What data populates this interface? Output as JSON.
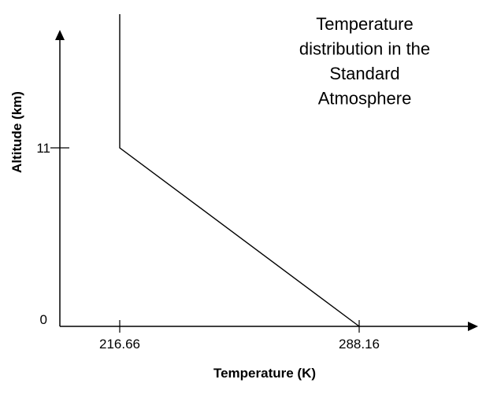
{
  "chart_data": {
    "type": "line",
    "title": [
      "Temperature",
      "distribution in the",
      "Standard",
      "Atmosphere"
    ],
    "xlabel": "Temperature (K)",
    "ylabel": "Altitude (km)",
    "x_ticks": [
      216.66,
      288.16
    ],
    "x_tick_labels": [
      "216.66",
      "288.16"
    ],
    "y_ticks": [
      0,
      11
    ],
    "y_tick_labels": [
      "0",
      "11"
    ],
    "series": [
      {
        "points": [
          {
            "x": 288.16,
            "y": 0
          },
          {
            "x": 216.66,
            "y": 11
          },
          {
            "x": 216.66,
            "y": 22
          }
        ]
      }
    ],
    "grid": false,
    "legend": "none",
    "colors": {
      "line": "#000000",
      "axis": "#000000",
      "text": "#000000"
    }
  }
}
